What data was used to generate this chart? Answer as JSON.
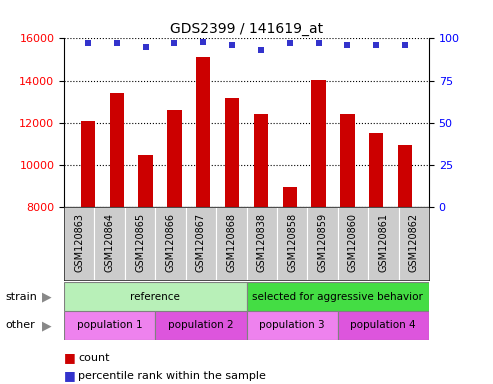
{
  "title": "GDS2399 / 141619_at",
  "samples": [
    "GSM120863",
    "GSM120864",
    "GSM120865",
    "GSM120866",
    "GSM120867",
    "GSM120868",
    "GSM120838",
    "GSM120858",
    "GSM120859",
    "GSM120860",
    "GSM120861",
    "GSM120862"
  ],
  "counts": [
    12100,
    13400,
    10500,
    12600,
    15100,
    13200,
    12400,
    8950,
    14050,
    12400,
    11500,
    10950
  ],
  "percentile_ranks": [
    97,
    97,
    95,
    97,
    98,
    96,
    93,
    97,
    97,
    96,
    96,
    96
  ],
  "ymin": 8000,
  "ymax": 16000,
  "yticks": [
    8000,
    10000,
    12000,
    14000,
    16000
  ],
  "y2min": 0,
  "y2max": 100,
  "y2ticks": [
    0,
    25,
    50,
    75,
    100
  ],
  "bar_color": "#cc0000",
  "dot_color": "#3333cc",
  "bar_width": 0.5,
  "strain_groups": [
    {
      "label": "reference",
      "start": 0,
      "end": 6,
      "color": "#b8f0b8"
    },
    {
      "label": "selected for aggressive behavior",
      "start": 6,
      "end": 12,
      "color": "#44dd44"
    }
  ],
  "other_groups": [
    {
      "label": "population 1",
      "start": 0,
      "end": 3,
      "color": "#ee82ee"
    },
    {
      "label": "population 2",
      "start": 3,
      "end": 6,
      "color": "#dd55dd"
    },
    {
      "label": "population 3",
      "start": 6,
      "end": 9,
      "color": "#ee82ee"
    },
    {
      "label": "population 4",
      "start": 9,
      "end": 12,
      "color": "#dd55dd"
    }
  ],
  "legend_count_label": "count",
  "legend_pct_label": "percentile rank within the sample",
  "strain_label": "strain",
  "other_label": "other",
  "background_color": "#ffffff",
  "plot_bg_color": "#ffffff",
  "tick_bg_color": "#cccccc"
}
